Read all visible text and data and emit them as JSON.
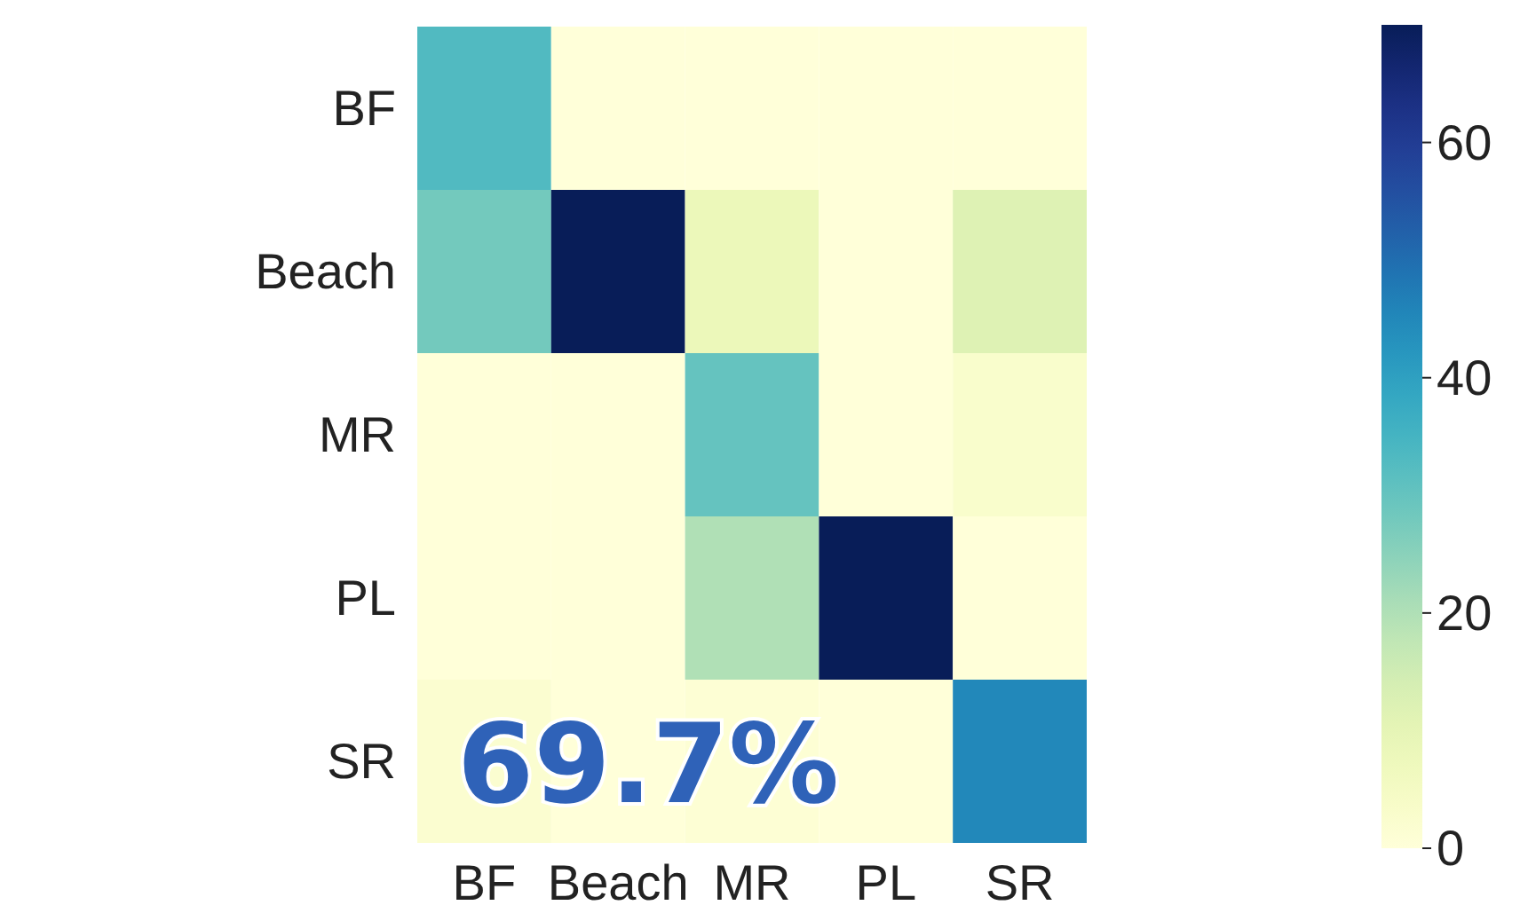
{
  "chart_data": {
    "type": "heatmap",
    "categories": [
      "BF",
      "Beach",
      "MR",
      "PL",
      "SR"
    ],
    "y_categories": [
      "BF",
      "Beach",
      "MR",
      "PL",
      "SR"
    ],
    "cells": [
      [
        33,
        0,
        0,
        0,
        0
      ],
      [
        28,
        70,
        8,
        0,
        12
      ],
      [
        0,
        0,
        30,
        0,
        3
      ],
      [
        0,
        0,
        20,
        70,
        0
      ],
      [
        2,
        0,
        1,
        0,
        45
      ]
    ],
    "clim": [
      0,
      70
    ],
    "cticks": [
      0,
      20,
      40,
      60
    ],
    "annotations": [
      "69.7%"
    ]
  }
}
